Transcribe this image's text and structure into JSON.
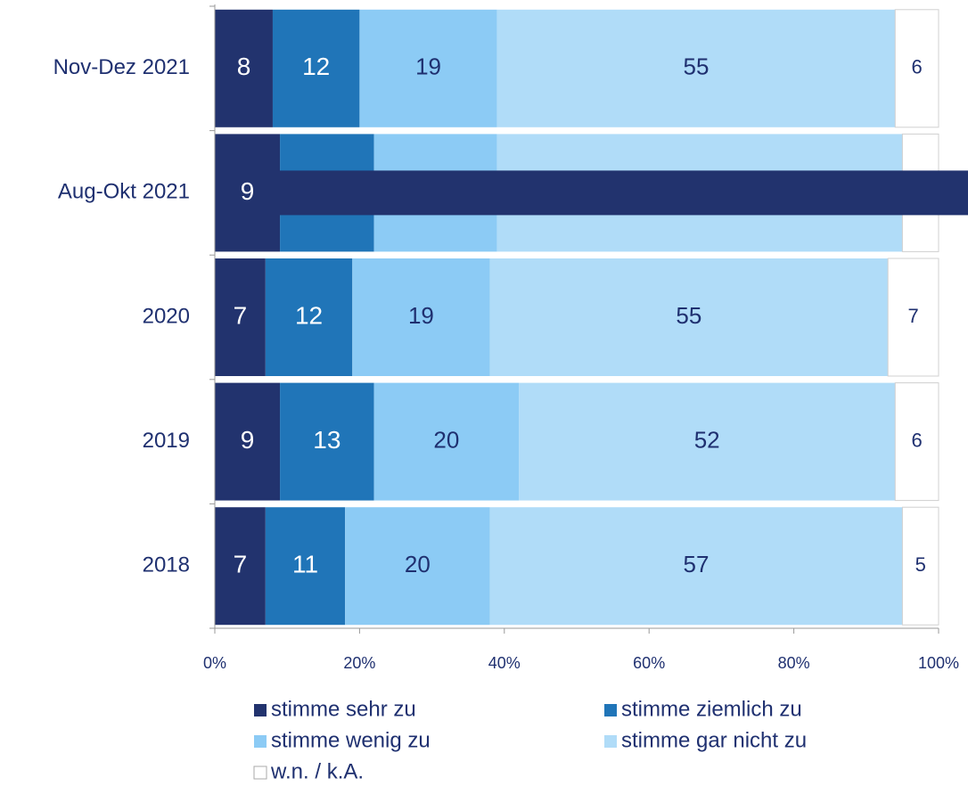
{
  "chart_data": {
    "type": "stacked-bar-horizontal",
    "categories": [
      "Nov-Dez 2021",
      "Aug-Okt 2021",
      "2020",
      "2019",
      "2018"
    ],
    "series": [
      {
        "name": "stimme sehr zu",
        "color": "#22336e",
        "label_color": "#ffffff",
        "values": [
          8,
          9,
          7,
          9,
          7
        ]
      },
      {
        "name": "stimme ziemlich zu",
        "color": "#2075b8",
        "label_color": "#ffffff",
        "values": [
          12,
          13,
          12,
          13,
          11
        ]
      },
      {
        "name": "stimme wenig zu",
        "color": "#8ccbf5",
        "label_color": "#1f3070",
        "values": [
          19,
          17,
          19,
          20,
          20
        ]
      },
      {
        "name": "stimme gar nicht zu",
        "color": "#b0dcf8",
        "label_color": "#1f3070",
        "values": [
          55,
          56,
          55,
          52,
          57
        ]
      },
      {
        "name": "w.n. / k.A.",
        "color": "#ffffff",
        "label_color": "#1f3070",
        "values": [
          6,
          5,
          7,
          6,
          5
        ]
      }
    ],
    "xlim": [
      0,
      100
    ],
    "xticks": [
      {
        "value": 0,
        "label": "0%"
      },
      {
        "value": 20,
        "label": "20%"
      },
      {
        "value": 40,
        "label": "40%"
      },
      {
        "value": 60,
        "label": "60%"
      },
      {
        "value": 80,
        "label": "80%"
      },
      {
        "value": 100,
        "label": "100%"
      }
    ]
  }
}
